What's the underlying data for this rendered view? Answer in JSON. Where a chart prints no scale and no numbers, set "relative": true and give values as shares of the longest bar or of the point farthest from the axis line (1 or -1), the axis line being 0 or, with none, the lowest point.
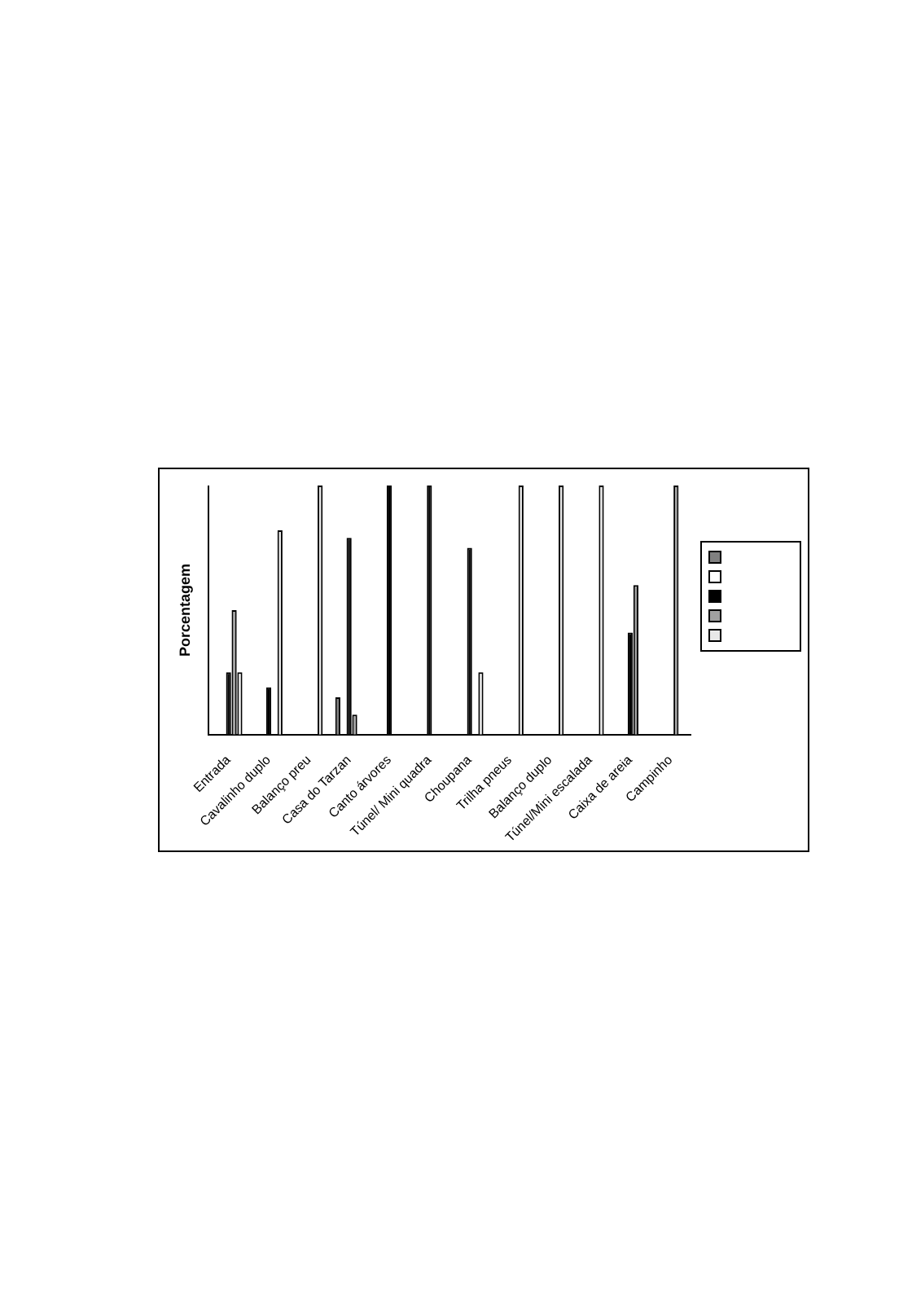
{
  "chart_data": {
    "type": "bar",
    "relative": true,
    "ylabel": "Porcentagem",
    "categories": [
      "Entrada",
      "Cavalinho duplo",
      "Balanço preu",
      "Casa do Tarzan",
      "Canto árvores",
      "Túnel/ Mini quadra",
      "Choupana",
      "Trilha pneus",
      "Balanço duplo",
      "Túnel/Mini escalada",
      "Caixa de areia",
      "Campinho"
    ],
    "series": [
      {
        "color": "#808080",
        "values": [
          null,
          null,
          null,
          0.15,
          null,
          null,
          null,
          null,
          null,
          null,
          null,
          null
        ]
      },
      {
        "color": "#ffffff",
        "values": [
          null,
          null,
          null,
          null,
          null,
          null,
          null,
          null,
          null,
          null,
          null,
          null
        ]
      },
      {
        "color": "#000000",
        "values": [
          0.25,
          0.19,
          null,
          0.79,
          1,
          1,
          0.75,
          null,
          null,
          null,
          0.41,
          null
        ]
      },
      {
        "color": "#a0a0a0",
        "values": [
          0.5,
          null,
          null,
          0.08,
          null,
          null,
          null,
          null,
          null,
          null,
          0.6,
          1
        ]
      },
      {
        "color": "#e8e8e8",
        "values": [
          0.25,
          0.82,
          1,
          null,
          null,
          null,
          0.25,
          1,
          1,
          1,
          null,
          null
        ]
      }
    ]
  }
}
